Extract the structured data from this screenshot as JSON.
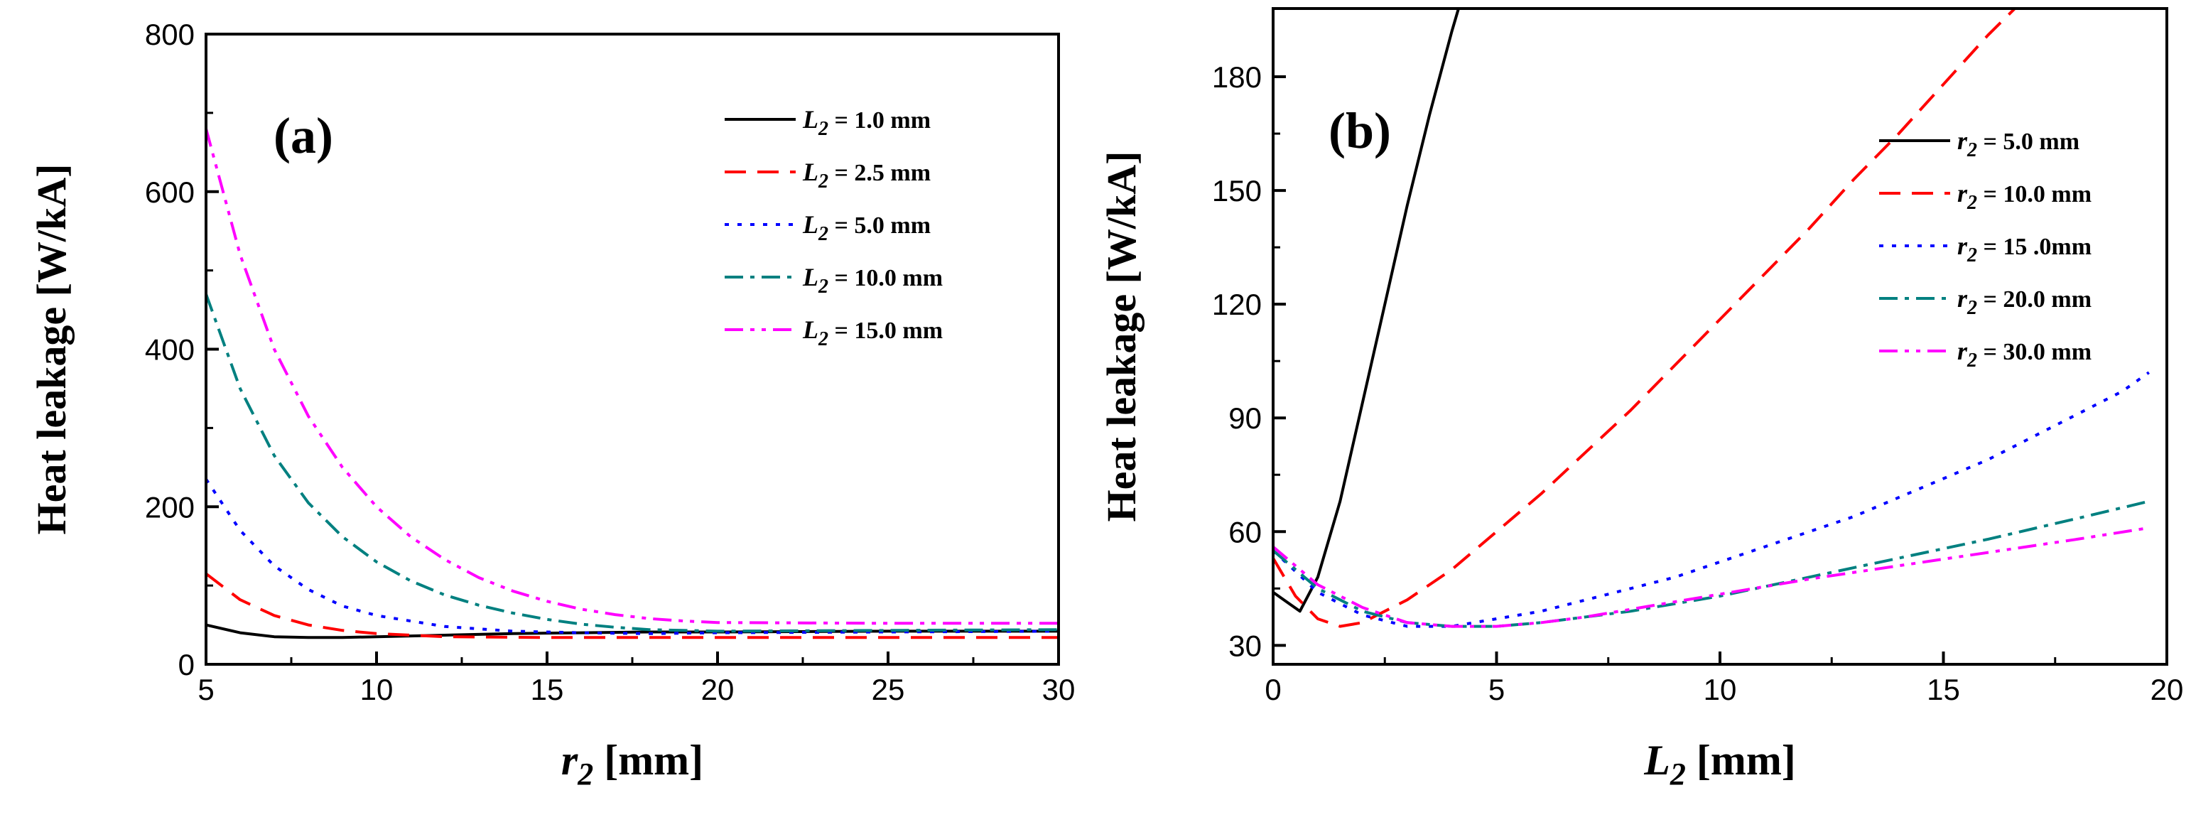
{
  "chart_data": [
    {
      "type": "line",
      "panel_label": "(a)",
      "xlabel": "r",
      "xlabel_sub": "2",
      "xlabel_unit": " [mm]",
      "ylabel": "Heat leakage [W/kA]",
      "xlim": [
        5,
        30
      ],
      "ylim": [
        0,
        800
      ],
      "xticks": [
        "5",
        "10",
        "15",
        "20",
        "25",
        "30"
      ],
      "yticks": [
        "0",
        "200",
        "400",
        "600",
        "800"
      ],
      "legend_position": "top-right",
      "grid": false,
      "series": [
        {
          "sym": "L",
          "sub": "2",
          "label": " = 1.0 mm",
          "color": "#000000",
          "dash": "solid",
          "x": [
            5,
            6,
            7,
            8,
            9,
            10,
            12,
            14,
            16,
            18,
            20,
            25,
            30
          ],
          "y": [
            50,
            40,
            35,
            34,
            34,
            35,
            37,
            39,
            40,
            41,
            41,
            42,
            42
          ]
        },
        {
          "sym": "L",
          "sub": "2",
          "label": " = 2.5 mm",
          "color": "#ff0000",
          "dash": "dash",
          "x": [
            5,
            6,
            7,
            8,
            9,
            10,
            12,
            15,
            20,
            25,
            30
          ],
          "y": [
            115,
            82,
            62,
            50,
            43,
            39,
            35,
            34,
            34,
            34,
            34
          ]
        },
        {
          "sym": "L",
          "sub": "2",
          "label": " = 5.0 mm",
          "color": "#0000ff",
          "dash": "dot",
          "x": [
            5,
            6,
            7,
            8,
            9,
            10,
            12,
            14,
            16,
            18,
            20,
            25,
            30
          ],
          "y": [
            235,
            170,
            125,
            95,
            74,
            62,
            48,
            42,
            40,
            39,
            40,
            41,
            42
          ]
        },
        {
          "sym": "L",
          "sub": "2",
          "label": " = 10.0 mm",
          "color": "#008080",
          "dash": "dashdot",
          "x": [
            5,
            6,
            7,
            8,
            9,
            10,
            11,
            12,
            13,
            14,
            15,
            16,
            17,
            18,
            20,
            25,
            30
          ],
          "y": [
            470,
            350,
            265,
            205,
            162,
            130,
            106,
            88,
            75,
            65,
            57,
            51,
            47,
            44,
            42,
            43,
            44
          ]
        },
        {
          "sym": "L",
          "sub": "2",
          "label": " = 15.0 mm",
          "color": "#ff00ff",
          "dash": "dashdotdot",
          "x": [
            5,
            6,
            7,
            8,
            9,
            10,
            11,
            12,
            13,
            14,
            15,
            16,
            17,
            18,
            19,
            20,
            25,
            30
          ],
          "y": [
            680,
            520,
            400,
            315,
            250,
            200,
            162,
            133,
            110,
            93,
            80,
            70,
            63,
            58,
            55,
            53,
            52,
            52
          ]
        }
      ]
    },
    {
      "type": "line",
      "panel_label": "(b)",
      "xlabel": "L",
      "xlabel_sub": "2",
      "xlabel_unit": " [mm]",
      "ylabel": "Heat leakage [W/kA]",
      "xlim": [
        0,
        20
      ],
      "ylim": [
        25,
        198
      ],
      "xticks": [
        "0",
        "5",
        "10",
        "15",
        "20"
      ],
      "yticks": [
        "30",
        "60",
        "90",
        "120",
        "150",
        "180"
      ],
      "legend_position": "right",
      "grid": false,
      "series": [
        {
          "sym": "r",
          "sub": "2",
          "label": " = 5.0 mm",
          "color": "#000000",
          "dash": "solid",
          "x": [
            0,
            0.3,
            0.6,
            1.0,
            1.5,
            2.0,
            2.5,
            3.0,
            3.5,
            4.0,
            4.15
          ],
          "y": [
            44,
            41.5,
            39,
            48,
            68,
            94,
            120,
            146,
            170,
            192,
            198
          ]
        },
        {
          "sym": "r",
          "sub": "2",
          "label": " = 10.0 mm",
          "color": "#ff0000",
          "dash": "dash",
          "x": [
            0,
            0.5,
            1.0,
            1.5,
            2.0,
            3.0,
            4.0,
            5.0,
            6.0,
            7.0,
            8.0,
            9.0,
            10.0,
            11.0,
            12.0,
            13.0,
            14.0,
            15.0,
            16.0,
            16.6
          ],
          "y": [
            53,
            43,
            37,
            35,
            36,
            42,
            50,
            60,
            70,
            81,
            92,
            104,
            116,
            128,
            140,
            153,
            165,
            178,
            191,
            198
          ]
        },
        {
          "sym": "r",
          "sub": "2",
          "label": " = 15 .0mm",
          "color": "#0000ff",
          "dash": "dot",
          "x": [
            0,
            1.0,
            2.0,
            3.0,
            4.0,
            5.0,
            6.0,
            7.0,
            8.0,
            9.0,
            10.0,
            11.0,
            12.0,
            13.0,
            14.0,
            15.0,
            16.0,
            17.0,
            18.0,
            19.0,
            19.6
          ],
          "y": [
            55,
            44,
            38,
            35,
            35,
            37,
            39,
            42,
            45,
            48,
            52,
            56,
            60,
            64,
            69,
            74,
            79,
            85,
            91,
            97,
            102
          ]
        },
        {
          "sym": "r",
          "sub": "2",
          "label": " = 20.0 mm",
          "color": "#008080",
          "dash": "dashdot",
          "x": [
            0,
            1.0,
            2.0,
            3.0,
            4.0,
            5.0,
            6.0,
            7.0,
            8.0,
            10.0,
            12.0,
            14.0,
            16.0,
            18.0,
            19.6
          ],
          "y": [
            55,
            45,
            39,
            36,
            35,
            35,
            36,
            37.5,
            39,
            43,
            48,
            53,
            58,
            63.5,
            68
          ]
        },
        {
          "sym": "r",
          "sub": "2",
          "label": " = 30.0 mm",
          "color": "#ff00ff",
          "dash": "dashdotdot",
          "x": [
            0,
            1.0,
            2.0,
            3.0,
            4.0,
            5.0,
            6.0,
            7.0,
            8.0,
            10.0,
            12.0,
            14.0,
            16.0,
            18.0,
            19.6
          ],
          "y": [
            56,
            46,
            40,
            36,
            35,
            35,
            36,
            37.5,
            39.5,
            43.5,
            47.5,
            51,
            54.5,
            58,
            61
          ]
        }
      ]
    }
  ]
}
